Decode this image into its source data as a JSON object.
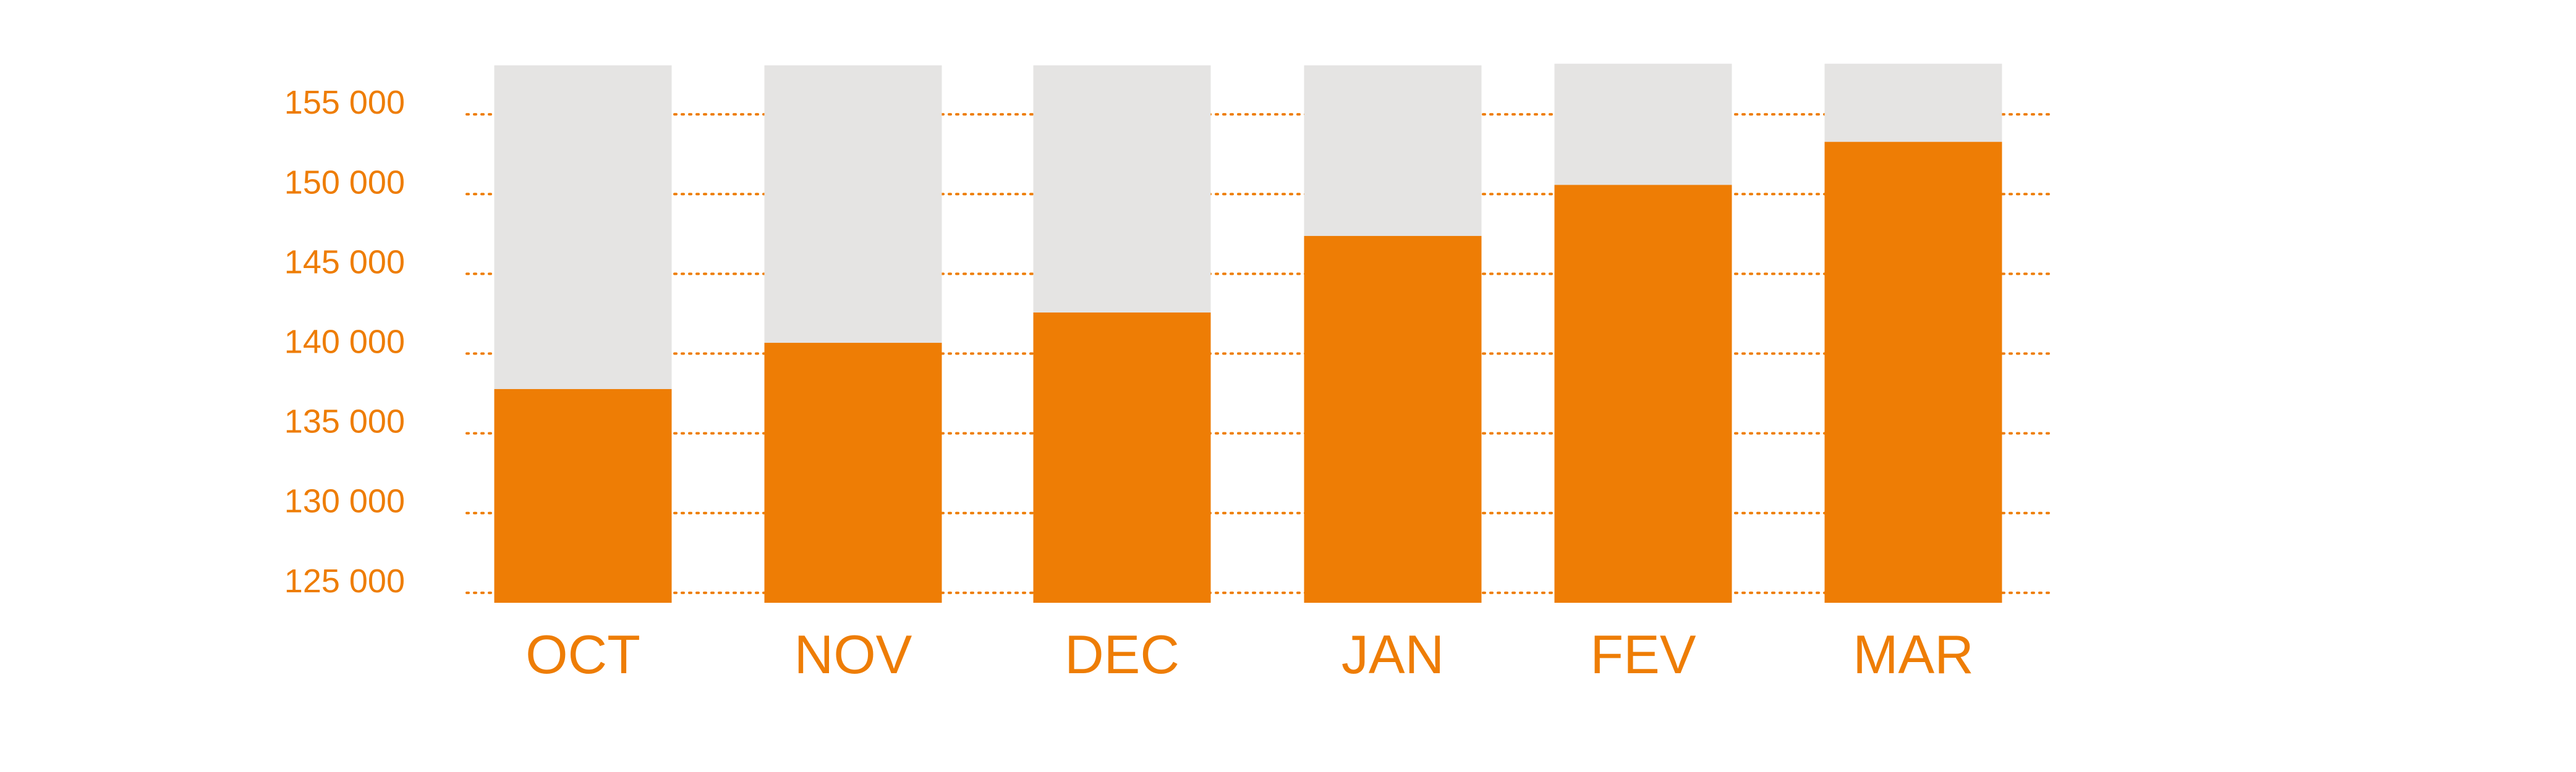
{
  "chart_data": {
    "type": "bar",
    "categories": [
      "OCT",
      "NOV",
      "DEC",
      "JAN",
      "FEV",
      "MAR"
    ],
    "series": [
      {
        "values": [
          137000,
          139900,
          141800,
          146600,
          149800,
          152500
        ]
      }
    ],
    "background_total": [
      157300,
      157300,
      157300,
      157300,
      157400,
      157400
    ],
    "y_ticks": [
      125000,
      130000,
      135000,
      140000,
      145000,
      150000,
      155000
    ],
    "y_tick_labels": [
      "125 000",
      "130 000",
      "135 000",
      "140 000",
      "145 000",
      "150 000",
      "155 000"
    ],
    "ylim": [
      123600,
      157600
    ],
    "grid": true,
    "grid_style": "dotted",
    "legend": "none",
    "title": "",
    "xlabel": "",
    "ylabel": "",
    "colors": {
      "bar": "#EE7D05",
      "background_bar": "#E5E4E3",
      "grid": "#EE7D05",
      "tick_text": "#EE7D05"
    }
  }
}
